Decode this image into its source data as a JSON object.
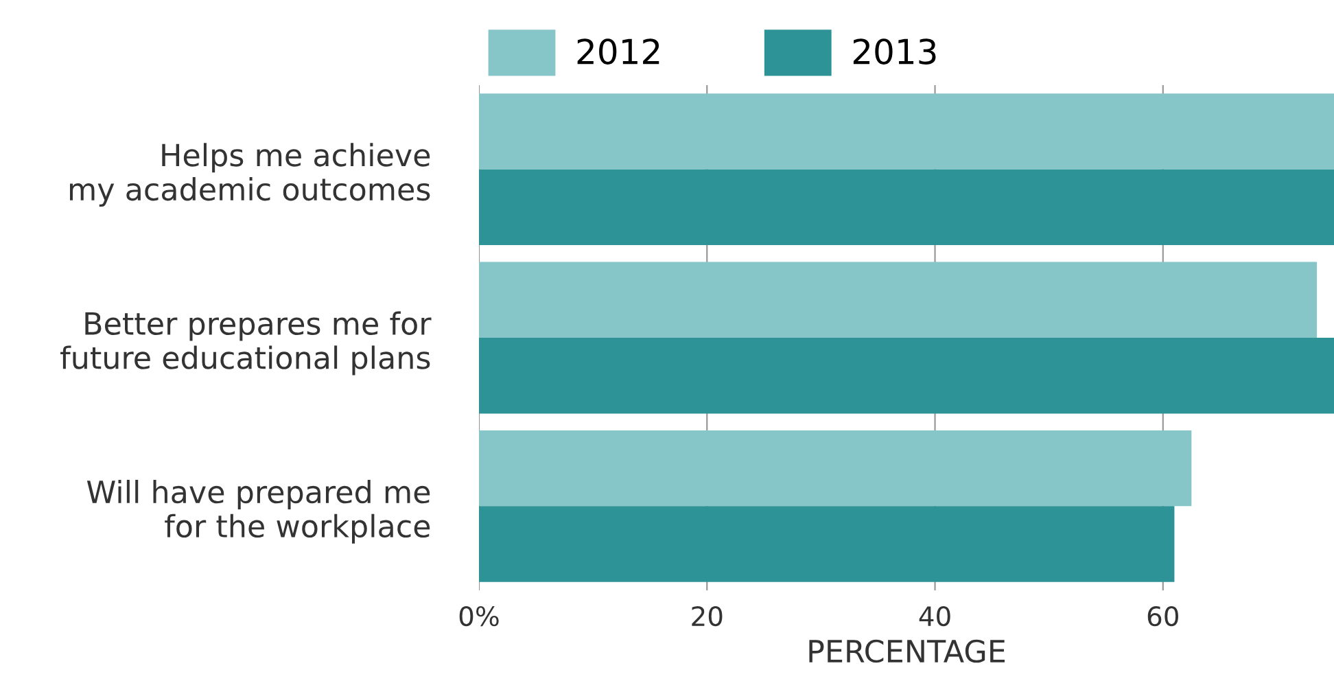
{
  "chart_data": {
    "type": "bar",
    "orientation": "horizontal",
    "xlabel": "PERCENTAGE",
    "categories": [
      "Helps me achieve\nmy academic outcomes",
      "Better prepares me for\nfuture educational plans",
      "Will have prepared me\nfor the workplace"
    ],
    "series": [
      {
        "name": "2012",
        "color": "#87c6c8",
        "values": [
          75,
          73.5,
          62.5
        ]
      },
      {
        "name": "2013",
        "color": "#2e9396",
        "values": [
          75,
          75,
          61.0
        ]
      }
    ],
    "xlim": [
      0,
      75
    ],
    "xticks": [
      {
        "value": 0,
        "label": "0%"
      },
      20,
      40,
      60
    ],
    "grid": "x",
    "legend": "top left"
  }
}
